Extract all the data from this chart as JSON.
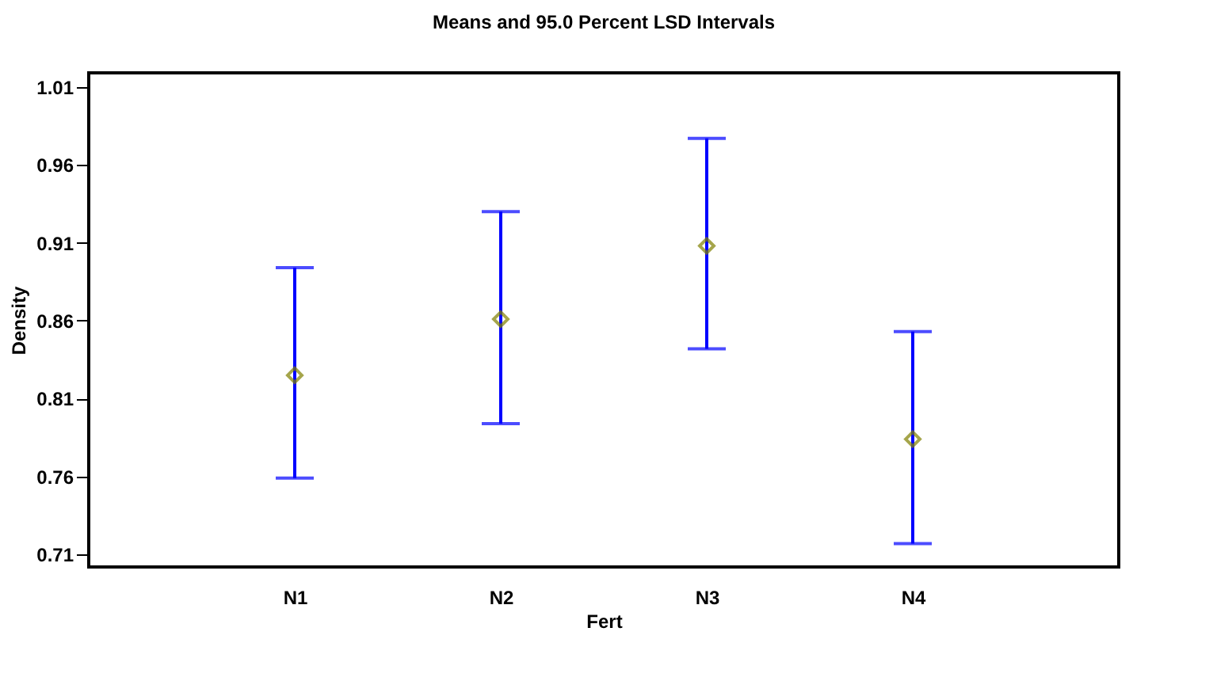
{
  "chart_data": {
    "type": "scatter",
    "title": "Means and 95.0 Percent LSD Intervals",
    "xlabel": "Fert",
    "ylabel": "Density",
    "categories": [
      "N1",
      "N2",
      "N3",
      "N4"
    ],
    "series": [
      {
        "color": "#808000",
        "values": [
          0.825,
          0.861,
          0.908,
          0.784
        ],
        "errors": [
          [
            0.759,
            0.894
          ],
          [
            0.794,
            0.93
          ],
          [
            0.842,
            0.977
          ],
          [
            0.717,
            0.853
          ]
        ]
      }
    ],
    "ylim": [
      0.702,
      1.019
    ],
    "yticks": [
      0.71,
      0.76,
      0.81,
      0.86,
      0.91,
      0.96,
      1.01
    ],
    "marker": "diamond",
    "grid": false
  }
}
